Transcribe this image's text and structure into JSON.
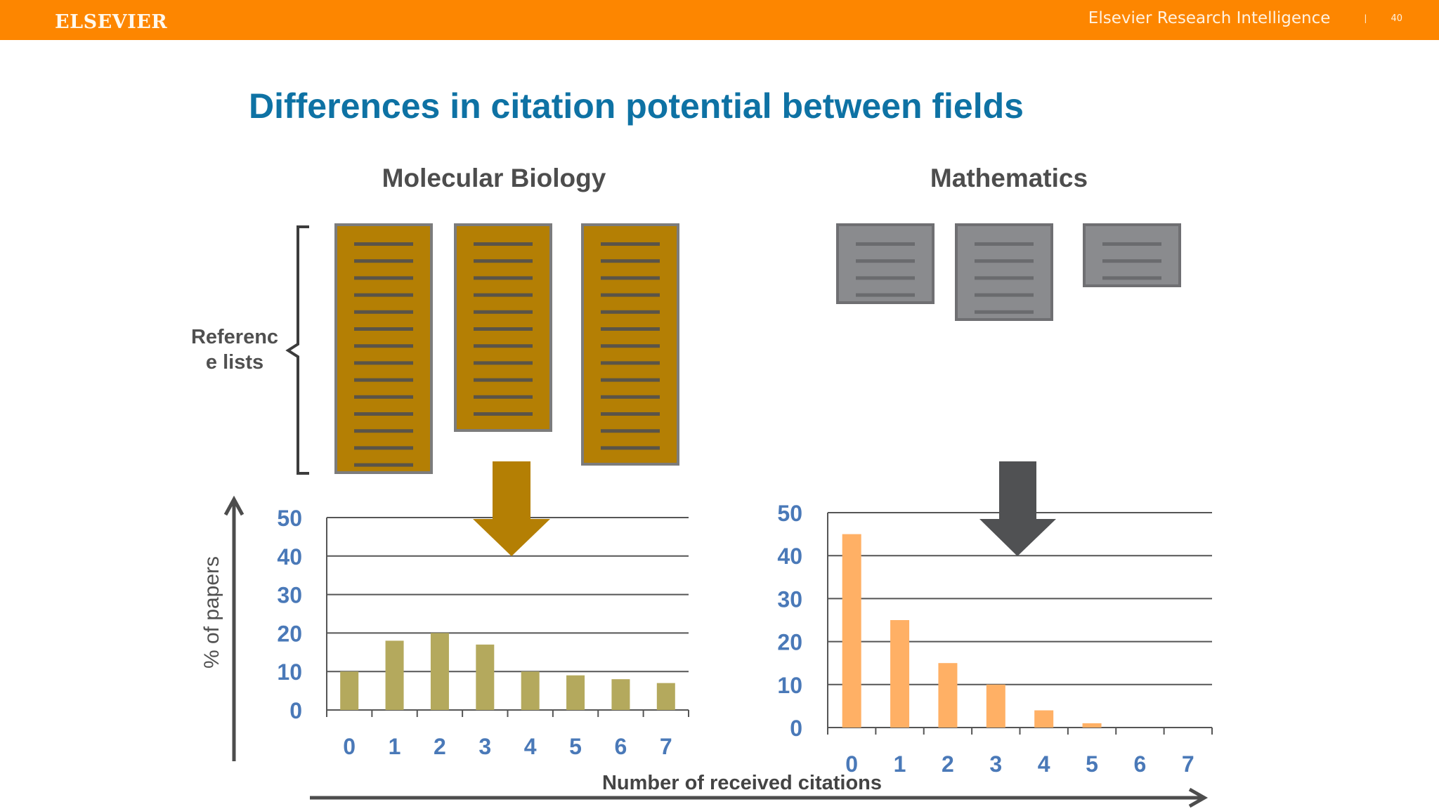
{
  "header": {
    "brand": "ELSEVIER",
    "title": "Elsevier Research Intelligence",
    "separator": "|",
    "page_number": "40",
    "bar_color": "#fd8600"
  },
  "slide": {
    "title": "Differences in citation potential between fields",
    "reference_label": "Reference lists"
  },
  "colors": {
    "title": "#0e72a4",
    "bio_doc": "#b47f04",
    "bio_bar": "#b4a95d",
    "bio_arrow": "#b47f04",
    "math_doc": "#8a8b8e",
    "math_bar": "#ffb065",
    "math_arrow": "#505153",
    "tick_labels": "#4a79b8"
  },
  "icons": [
    "bracket-icon",
    "document-icon",
    "down-arrow-icon",
    "axis-arrow-icon"
  ],
  "chart_data": [
    {
      "type": "bar",
      "title": "Molecular Biology",
      "categories": [
        "0",
        "1",
        "2",
        "3",
        "4",
        "5",
        "6",
        "7"
      ],
      "values": [
        10,
        18,
        20,
        17,
        10,
        9,
        8,
        7
      ],
      "y_ticks": [
        "0",
        "10",
        "20",
        "30",
        "40",
        "50"
      ],
      "ylim": [
        0,
        50
      ],
      "xlabel": "Number of received citations",
      "ylabel": "% of papers",
      "grid": true
    },
    {
      "type": "bar",
      "title": "Mathematics",
      "categories": [
        "0",
        "1",
        "2",
        "3",
        "4",
        "5",
        "6",
        "7"
      ],
      "values": [
        45,
        25,
        15,
        10,
        4,
        1,
        0,
        0
      ],
      "y_ticks": [
        "0",
        "10",
        "20",
        "30",
        "40",
        "50"
      ],
      "ylim": [
        0,
        50
      ],
      "xlabel": "Number of received citations",
      "ylabel": "% of papers",
      "grid": true
    }
  ]
}
